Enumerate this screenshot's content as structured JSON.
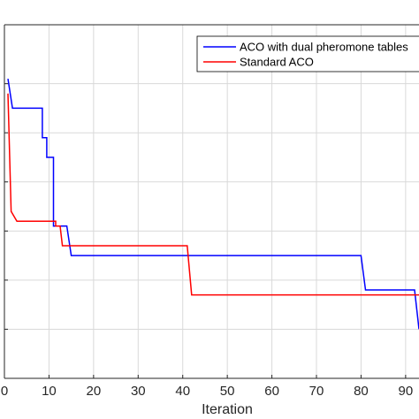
{
  "chart_data": {
    "type": "line",
    "title": "",
    "xlabel": "Iteration",
    "ylabel": "",
    "xlim": [
      0,
      93
    ],
    "ylim": [
      0,
      7.2
    ],
    "xticks": [
      0,
      10,
      20,
      30,
      40,
      50,
      60,
      70,
      80,
      90
    ],
    "xtick_labels": [
      "0",
      "10",
      "20",
      "30",
      "40",
      "50",
      "60",
      "70",
      "80",
      "90"
    ],
    "yticks": [
      1,
      2,
      3,
      4,
      5,
      6
    ],
    "grid": true,
    "legend_position": "top-right",
    "series": [
      {
        "name": "ACO with dual pheromone tables",
        "color": "#0000ff",
        "x": [
          0.8,
          1.8,
          1.8,
          8.5,
          8.5,
          9.5,
          9.5,
          11.0,
          11.0,
          14.0,
          15.0,
          80.0,
          81.0,
          92.0,
          93.0
        ],
        "y": [
          6.1,
          5.5,
          5.5,
          5.5,
          4.9,
          4.9,
          4.5,
          4.5,
          3.1,
          3.1,
          2.5,
          2.5,
          1.8,
          1.8,
          1.0
        ]
      },
      {
        "name": "Standard ACO",
        "color": "#ff0000",
        "x": [
          0.8,
          1.5,
          2.8,
          11.5,
          11.5,
          12.5,
          13.0,
          41.0,
          42.0,
          93.0
        ],
        "y": [
          5.8,
          3.4,
          3.2,
          3.2,
          3.1,
          3.1,
          2.7,
          2.7,
          1.7,
          1.7
        ]
      }
    ]
  }
}
